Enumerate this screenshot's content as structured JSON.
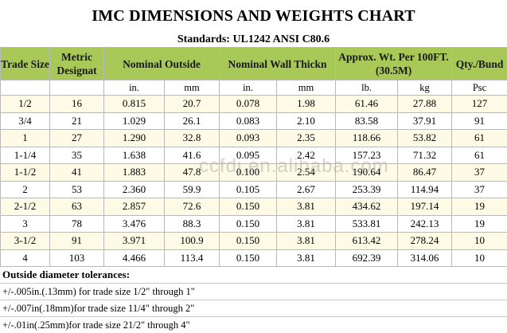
{
  "title": "IMC DIMENSIONS AND WEIGHTS CHART",
  "standards": "Standards:  UL1242    ANSI C80.6",
  "headers": [
    "Trade Size",
    "Metric Designat",
    "Nominal Outside",
    "Nominal Wall Thickn",
    "Approx. Wt. Per 100FT. (30.5M)",
    "Qty./Bund"
  ],
  "units": [
    "",
    "",
    "in.",
    "mm",
    "in.",
    "mm",
    "lb.",
    "kg",
    "Psc"
  ],
  "rows": [
    [
      "1/2",
      "16",
      "0.815",
      "20.7",
      "0.078",
      "1.98",
      "61.46",
      "27.88",
      "127"
    ],
    [
      "3/4",
      "21",
      "1.029",
      "26.1",
      "0.083",
      "2.10",
      "83.58",
      "37.91",
      "91"
    ],
    [
      "1",
      "27",
      "1.290",
      "32.8",
      "0.093",
      "2.35",
      "118.66",
      "53.82",
      "61"
    ],
    [
      "1-1/4",
      "35",
      "1.638",
      "41.6",
      "0.095",
      "2.42",
      "157.23",
      "71.32",
      "61"
    ],
    [
      "1-1/2",
      "41",
      "1.883",
      "47.8",
      "0.100",
      "2.54",
      "190.64",
      "86.47",
      "37"
    ],
    [
      "2",
      "53",
      "2.360",
      "59.9",
      "0.105",
      "2.67",
      "253.39",
      "114.94",
      "37"
    ],
    [
      "2-1/2",
      "63",
      "2.857",
      "72.6",
      "0.150",
      "3.81",
      "434.62",
      "197.14",
      "19"
    ],
    [
      "3",
      "78",
      "3.476",
      "88.3",
      "0.150",
      "3.81",
      "533.81",
      "242.13",
      "19"
    ],
    [
      "3-1/2",
      "91",
      "3.971",
      "100.9",
      "0.150",
      "3.81",
      "613.42",
      "278.24",
      "10"
    ],
    [
      "4",
      "103",
      "4.466",
      "113.4",
      "0.150",
      "3.81",
      "692.39",
      "314.06",
      "10"
    ]
  ],
  "tolerances": {
    "heading": "Outside diameter tolerances:",
    "lines": [
      "+/-.005in.(.13mm) for trade size 1/2\" through 1\"",
      "+/-.007in(.18mm)for trade size 11/4\" through 2\"",
      "+/-.01in(.25mm)for trade size 21/2\" through 4\""
    ]
  },
  "watermark": "ccfdj.en.alibaba.com",
  "colors": {
    "header_bg": "#a8c957",
    "alt_row_bg": "#fdfbe6"
  }
}
